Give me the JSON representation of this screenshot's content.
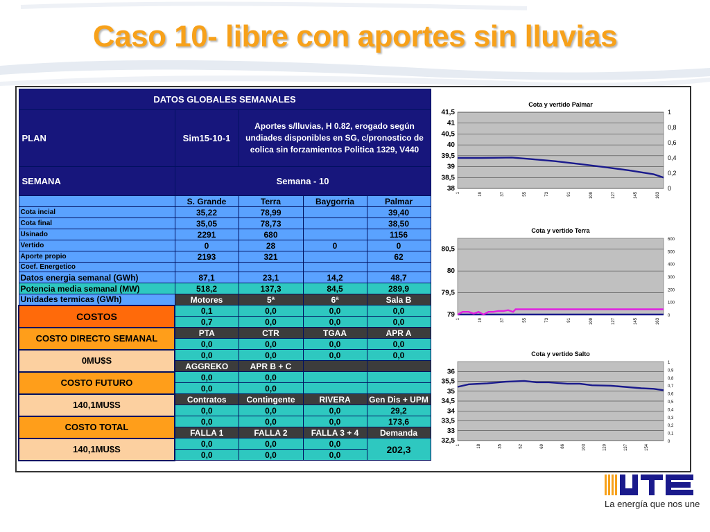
{
  "title": "Caso 10- libre con aportes sin lluvias",
  "colors": {
    "title": "#f7a11a",
    "navy": "#17167c",
    "blue": "#5aa2ff",
    "teal": "#2ec8c0",
    "orange": "#ff6a0a",
    "gray": "#3c3c3c",
    "line": "#1a1a8c",
    "magenta": "#e020e0"
  },
  "table": {
    "header": "DATOS GLOBALES SEMANALES",
    "plan_label": "PLAN",
    "plan_value": "Sim15-10-1",
    "plan_desc": "Aportes s/lluvias, H 0.82, erogado según undiades disponibles en SG, c/pronostico de eolica sin forzamientos  Politica 1329, V440",
    "semana_label": "SEMANA",
    "semana_value": "Semana - 10",
    "columns": [
      "S. Grande",
      "Terra",
      "Baygorria",
      "Palmar"
    ],
    "rows": [
      {
        "label": "Cota incial",
        "values": [
          "35,22",
          "78,99",
          "",
          "39,40"
        ]
      },
      {
        "label": "Cota final",
        "values": [
          "35,05",
          "78,73",
          "",
          "38,50"
        ]
      },
      {
        "label": "Usinado",
        "values": [
          "2291",
          "680",
          "",
          "1156"
        ]
      },
      {
        "label": "Vertido",
        "values": [
          "0",
          "28",
          "0",
          "0"
        ]
      },
      {
        "label": "Aporte propio",
        "values": [
          "2193",
          "321",
          "",
          "62"
        ]
      },
      {
        "label": "Coef. Energetico",
        "values": [
          "",
          "",
          "",
          ""
        ]
      },
      {
        "label": "Datos energia semanal  (GWh)",
        "values": [
          "87,1",
          "23,1",
          "14,2",
          "48,7"
        ]
      },
      {
        "label": "Potencia media semanal (MW)",
        "values": [
          "518,2",
          "137,3",
          "84,5",
          "289,9"
        ]
      }
    ],
    "termicas_label": "Unidades termicas (GWh)",
    "termicas_cols": [
      "Motores",
      "5ª",
      "6ª",
      "Sala B"
    ],
    "costos_label": "COSTOS",
    "termicas_row1": [
      "0,1",
      "0,0",
      "0,0",
      "0,0"
    ],
    "termicas_row2": [
      "0,7",
      "0,0",
      "0,0",
      "0,0"
    ],
    "costo_directo_label": "COSTO DIRECTO SEMANAL",
    "costo_directo_value": "0MU$S",
    "pta_cols": [
      "PTA",
      "CTR",
      "TGAA",
      "APR A"
    ],
    "pta_row1": [
      "0,0",
      "0,0",
      "0,0",
      "0,0"
    ],
    "pta_row2": [
      "0,0",
      "0,0",
      "0,0",
      "0,0"
    ],
    "aggreko_cols": [
      "AGGREKO",
      "APR B + C"
    ],
    "costo_futuro_label": "COSTO FUTURO",
    "costo_futuro_value": "140,1MU$S",
    "aggreko_row1": [
      "0,0",
      "0,0"
    ],
    "aggreko_row2": [
      "0,0",
      "0,0"
    ],
    "contratos_cols": [
      "Contratos",
      "Contingente",
      "RIVERA",
      "Gen Dis + UPM"
    ],
    "contratos_row1": [
      "0,0",
      "0,0",
      "0,0",
      "29,2"
    ],
    "contratos_row2": [
      "0,0",
      "0,0",
      "0,0",
      "173,6"
    ],
    "costo_total_label": "COSTO TOTAL",
    "costo_total_value": "140,1MU$S",
    "falla_cols": [
      "FALLA 1",
      "FALLA 2",
      "FALLA 3 + 4",
      "Demanda"
    ],
    "falla_row1": [
      "0,0",
      "0,0",
      "0,0"
    ],
    "falla_row2": [
      "0,0",
      "0,0",
      "0,0"
    ],
    "demanda_value": "202,3"
  },
  "chart_data": [
    {
      "type": "line",
      "title": "Cota y vertido Palmar",
      "ylim": [
        38,
        41.5
      ],
      "y_ticks": [
        "38",
        "38,5",
        "39",
        "39,5",
        "40",
        "40,5",
        "41",
        "41,5"
      ],
      "y2lim": [
        0,
        1
      ],
      "y2_ticks": [
        "0",
        "0,2",
        "0,4",
        "0,6",
        "0,8",
        "1"
      ],
      "x_ticks": [
        "1",
        "19",
        "37",
        "55",
        "73",
        "91",
        "109",
        "127",
        "145",
        "163"
      ],
      "x_max": 168,
      "grid": true,
      "series": [
        {
          "color": "#1a1a8c",
          "axis": "left",
          "x": [
            1,
            20,
            45,
            60,
            80,
            100,
            120,
            140,
            160,
            168
          ],
          "values": [
            39.4,
            39.4,
            39.42,
            39.35,
            39.25,
            39.12,
            38.98,
            38.83,
            38.65,
            38.5
          ]
        }
      ]
    },
    {
      "type": "line",
      "title": "Cota y vertido Terra",
      "ylim": [
        79,
        80.75
      ],
      "y_ticks": [
        "79",
        "79,5",
        "80",
        "80,5"
      ],
      "y2lim": [
        0,
        600
      ],
      "y2_ticks": [
        "0",
        "100",
        "200",
        "300",
        "400",
        "500",
        "600"
      ],
      "x_ticks": [
        "1",
        "19",
        "37",
        "55",
        "73",
        "91",
        "109",
        "127",
        "145",
        "163"
      ],
      "x_max": 168,
      "grid": true,
      "series": [
        {
          "color": "#1a1a8c",
          "axis": "left",
          "x": [
            1,
            168
          ],
          "values": [
            79.0,
            79.0
          ]
        },
        {
          "color": "#e020e0",
          "axis": "left",
          "x": [
            1,
            5,
            10,
            14,
            18,
            22,
            26,
            30,
            34,
            38,
            42,
            46,
            48,
            52,
            56,
            60,
            65,
            168
          ],
          "values": [
            79.0,
            79.06,
            79.06,
            79.02,
            79.06,
            79.0,
            79.06,
            79.06,
            79.08,
            79.08,
            79.1,
            79.06,
            79.12,
            79.12,
            79.12,
            79.12,
            79.12,
            79.12
          ]
        }
      ]
    },
    {
      "type": "line",
      "title": "Cota y vertido Salto",
      "ylim": [
        32.5,
        36.5
      ],
      "y_ticks": [
        "32,5",
        "33",
        "33,5",
        "34",
        "34,5",
        "35",
        "35,5",
        "36"
      ],
      "y2lim": [
        0,
        1
      ],
      "y2_ticks": [
        "0",
        "0,1",
        "0,2",
        "0,3",
        "0,4",
        "0,5",
        "0,6",
        "0,7",
        "0,8",
        "0,9",
        "1"
      ],
      "x_ticks": [
        "1",
        "18",
        "35",
        "52",
        "69",
        "86",
        "103",
        "120",
        "137",
        "154"
      ],
      "x_max": 168,
      "grid": true,
      "series": [
        {
          "color": "#1a1a8c",
          "axis": "left",
          "x": [
            1,
            10,
            25,
            40,
            55,
            65,
            75,
            90,
            100,
            110,
            125,
            140,
            150,
            160,
            168
          ],
          "values": [
            35.22,
            35.35,
            35.4,
            35.48,
            35.52,
            35.45,
            35.45,
            35.38,
            35.38,
            35.3,
            35.28,
            35.2,
            35.15,
            35.12,
            35.05
          ]
        }
      ]
    }
  ],
  "logo": {
    "text": "La energía que nos une",
    "brand": "UTE",
    "color": "#1a1a8c"
  }
}
